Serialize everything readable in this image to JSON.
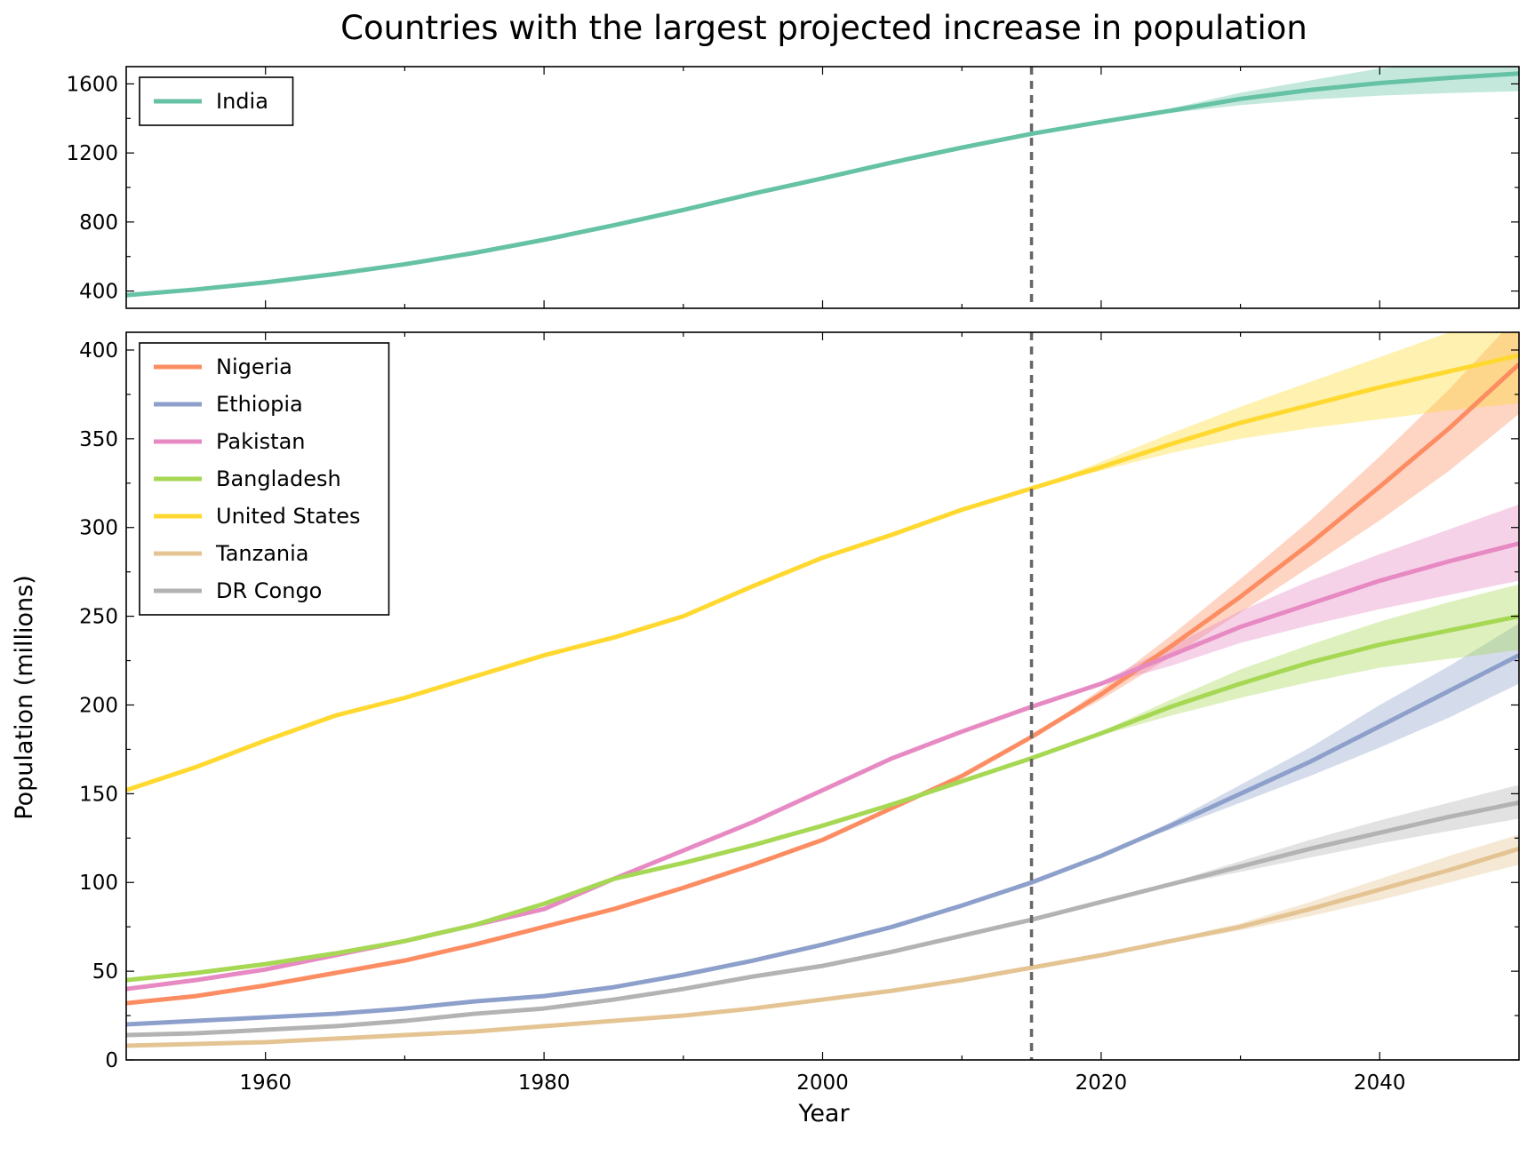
{
  "title": "Countries with the largest projected increase in population",
  "xlabel": "Year",
  "ylabel": "Population (millions)",
  "projection_marker_year": 2015,
  "chart_data": [
    {
      "type": "line",
      "panel": "top",
      "xlim": [
        1950,
        2050
      ],
      "ylim": [
        300,
        1700
      ],
      "yticks": [
        400,
        800,
        1200,
        1600
      ],
      "legend_position": "top-left",
      "series": [
        {
          "name": "India",
          "color": "#66c2a5",
          "x": [
            1950,
            1955,
            1960,
            1965,
            1970,
            1975,
            1980,
            1985,
            1990,
            1995,
            2000,
            2005,
            2010,
            2015,
            2020,
            2025,
            2030,
            2035,
            2040,
            2045,
            2050
          ],
          "values": [
            376,
            409,
            450,
            499,
            555,
            621,
            697,
            781,
            870,
            964,
            1053,
            1145,
            1231,
            1311,
            1380,
            1445,
            1513,
            1565,
            1605,
            1635,
            1660
          ],
          "lower": [
            376,
            409,
            450,
            499,
            555,
            621,
            697,
            781,
            870,
            964,
            1053,
            1145,
            1231,
            1311,
            1380,
            1432,
            1477,
            1509,
            1532,
            1547,
            1557
          ],
          "upper": [
            376,
            409,
            450,
            499,
            555,
            621,
            697,
            781,
            870,
            964,
            1053,
            1145,
            1231,
            1311,
            1380,
            1458,
            1549,
            1620,
            1690,
            1720,
            1730
          ]
        }
      ]
    },
    {
      "type": "line",
      "panel": "bottom",
      "xlim": [
        1950,
        2050
      ],
      "ylim": [
        0,
        410
      ],
      "yticks": [
        0,
        50,
        100,
        150,
        200,
        250,
        300,
        350,
        400
      ],
      "xticks": [
        1960,
        1980,
        2000,
        2020,
        2040
      ],
      "legend_position": "top-left",
      "series": [
        {
          "name": "Nigeria",
          "color": "#fc8d62",
          "x": [
            1950,
            1955,
            1960,
            1965,
            1970,
            1975,
            1980,
            1985,
            1990,
            1995,
            2000,
            2005,
            2010,
            2015,
            2020,
            2025,
            2030,
            2035,
            2040,
            2045,
            2050
          ],
          "values": [
            32,
            36,
            42,
            49,
            56,
            65,
            75,
            85,
            97,
            110,
            124,
            142,
            160,
            182,
            206,
            233,
            261,
            291,
            323,
            356,
            392
          ],
          "lower": [
            32,
            36,
            42,
            49,
            56,
            65,
            75,
            85,
            97,
            110,
            124,
            142,
            160,
            182,
            203,
            227,
            252,
            278,
            304,
            332,
            364
          ],
          "upper": [
            32,
            36,
            42,
            49,
            56,
            65,
            75,
            85,
            97,
            110,
            124,
            142,
            160,
            182,
            209,
            239,
            271,
            304,
            340,
            378,
            420
          ]
        },
        {
          "name": "Ethiopia",
          "color": "#8da0cb",
          "x": [
            1950,
            1955,
            1960,
            1965,
            1970,
            1975,
            1980,
            1985,
            1990,
            1995,
            2000,
            2005,
            2010,
            2015,
            2020,
            2025,
            2030,
            2035,
            2040,
            2045,
            2050
          ],
          "values": [
            20,
            22,
            24,
            26,
            29,
            33,
            36,
            41,
            48,
            56,
            65,
            75,
            87,
            100,
            115,
            132,
            150,
            168,
            188,
            208,
            228
          ],
          "lower": [
            20,
            22,
            24,
            26,
            29,
            33,
            36,
            41,
            48,
            56,
            65,
            75,
            87,
            100,
            115,
            130,
            145,
            160,
            176,
            193,
            212
          ],
          "upper": [
            20,
            22,
            24,
            26,
            29,
            33,
            36,
            41,
            48,
            56,
            65,
            75,
            87,
            100,
            115,
            134,
            155,
            176,
            200,
            222,
            246
          ]
        },
        {
          "name": "Pakistan",
          "color": "#e78ac3",
          "x": [
            1950,
            1955,
            1960,
            1965,
            1970,
            1975,
            1980,
            1985,
            1990,
            1995,
            2000,
            2005,
            2010,
            2015,
            2020,
            2025,
            2030,
            2035,
            2040,
            2045,
            2050
          ],
          "values": [
            40,
            45,
            51,
            59,
            67,
            76,
            85,
            102,
            118,
            134,
            152,
            170,
            185,
            199,
            212,
            228,
            244,
            257,
            270,
            281,
            291
          ],
          "lower": [
            40,
            45,
            51,
            59,
            67,
            76,
            85,
            102,
            118,
            134,
            152,
            170,
            185,
            199,
            211,
            222,
            235,
            245,
            254,
            262,
            270
          ],
          "upper": [
            40,
            45,
            51,
            59,
            67,
            76,
            85,
            102,
            118,
            134,
            152,
            170,
            185,
            199,
            213,
            233,
            253,
            270,
            285,
            299,
            313
          ]
        },
        {
          "name": "Bangladesh",
          "color": "#a6d854",
          "x": [
            1950,
            1955,
            1960,
            1965,
            1970,
            1975,
            1980,
            1985,
            1990,
            1995,
            2000,
            2005,
            2010,
            2015,
            2020,
            2025,
            2030,
            2035,
            2040,
            2045,
            2050
          ],
          "values": [
            45,
            49,
            54,
            60,
            67,
            76,
            88,
            102,
            111,
            121,
            132,
            144,
            157,
            170,
            184,
            199,
            212,
            224,
            234,
            242,
            250
          ],
          "lower": [
            45,
            49,
            54,
            60,
            67,
            76,
            88,
            102,
            111,
            121,
            132,
            144,
            157,
            170,
            183,
            194,
            204,
            213,
            221,
            226,
            231
          ],
          "upper": [
            45,
            49,
            54,
            60,
            67,
            76,
            88,
            102,
            111,
            121,
            132,
            144,
            157,
            170,
            185,
            203,
            220,
            234,
            247,
            258,
            268
          ]
        },
        {
          "name": "United States",
          "color": "#ffd92f",
          "x": [
            1950,
            1955,
            1960,
            1965,
            1970,
            1975,
            1980,
            1985,
            1990,
            1995,
            2000,
            2005,
            2010,
            2015,
            2020,
            2025,
            2030,
            2035,
            2040,
            2045,
            2050
          ],
          "values": [
            152,
            165,
            180,
            194,
            204,
            216,
            228,
            238,
            250,
            267,
            283,
            296,
            310,
            322,
            334,
            347,
            359,
            369,
            379,
            388,
            397
          ],
          "lower": [
            152,
            165,
            180,
            194,
            204,
            216,
            228,
            238,
            250,
            267,
            283,
            296,
            310,
            322,
            332,
            342,
            350,
            356,
            361,
            366,
            370
          ],
          "upper": [
            152,
            165,
            180,
            194,
            204,
            216,
            228,
            238,
            250,
            267,
            283,
            296,
            310,
            322,
            337,
            353,
            368,
            382,
            396,
            410,
            424
          ]
        },
        {
          "name": "Tanzania",
          "color": "#e5c494",
          "x": [
            1950,
            1955,
            1960,
            1965,
            1970,
            1975,
            1980,
            1985,
            1990,
            1995,
            2000,
            2005,
            2010,
            2015,
            2020,
            2025,
            2030,
            2035,
            2040,
            2045,
            2050
          ],
          "values": [
            8,
            9,
            10,
            12,
            14,
            16,
            19,
            22,
            25,
            29,
            34,
            39,
            45,
            52,
            59,
            67,
            75,
            85,
            96,
            107,
            119
          ],
          "lower": [
            8,
            9,
            10,
            12,
            14,
            16,
            19,
            22,
            25,
            29,
            34,
            39,
            45,
            52,
            59,
            66,
            73,
            81,
            90,
            100,
            110
          ],
          "upper": [
            8,
            9,
            10,
            12,
            14,
            16,
            19,
            22,
            25,
            29,
            34,
            39,
            45,
            52,
            59,
            68,
            77,
            89,
            102,
            115,
            127
          ]
        },
        {
          "name": "DR Congo",
          "color": "#b3b3b3",
          "x": [
            1950,
            1955,
            1960,
            1965,
            1970,
            1975,
            1980,
            1985,
            1990,
            1995,
            2000,
            2005,
            2010,
            2015,
            2020,
            2025,
            2030,
            2035,
            2040,
            2045,
            2050
          ],
          "values": [
            14,
            15,
            17,
            19,
            22,
            26,
            29,
            34,
            40,
            47,
            53,
            61,
            70,
            79,
            89,
            99,
            109,
            119,
            128,
            137,
            145
          ],
          "lower": [
            14,
            15,
            17,
            19,
            22,
            26,
            29,
            34,
            40,
            47,
            53,
            61,
            70,
            79,
            89,
            98,
            106,
            114,
            122,
            129,
            136
          ],
          "upper": [
            14,
            15,
            17,
            19,
            22,
            26,
            29,
            34,
            40,
            47,
            53,
            61,
            70,
            79,
            89,
            100,
            112,
            124,
            135,
            145,
            155
          ]
        }
      ]
    }
  ]
}
